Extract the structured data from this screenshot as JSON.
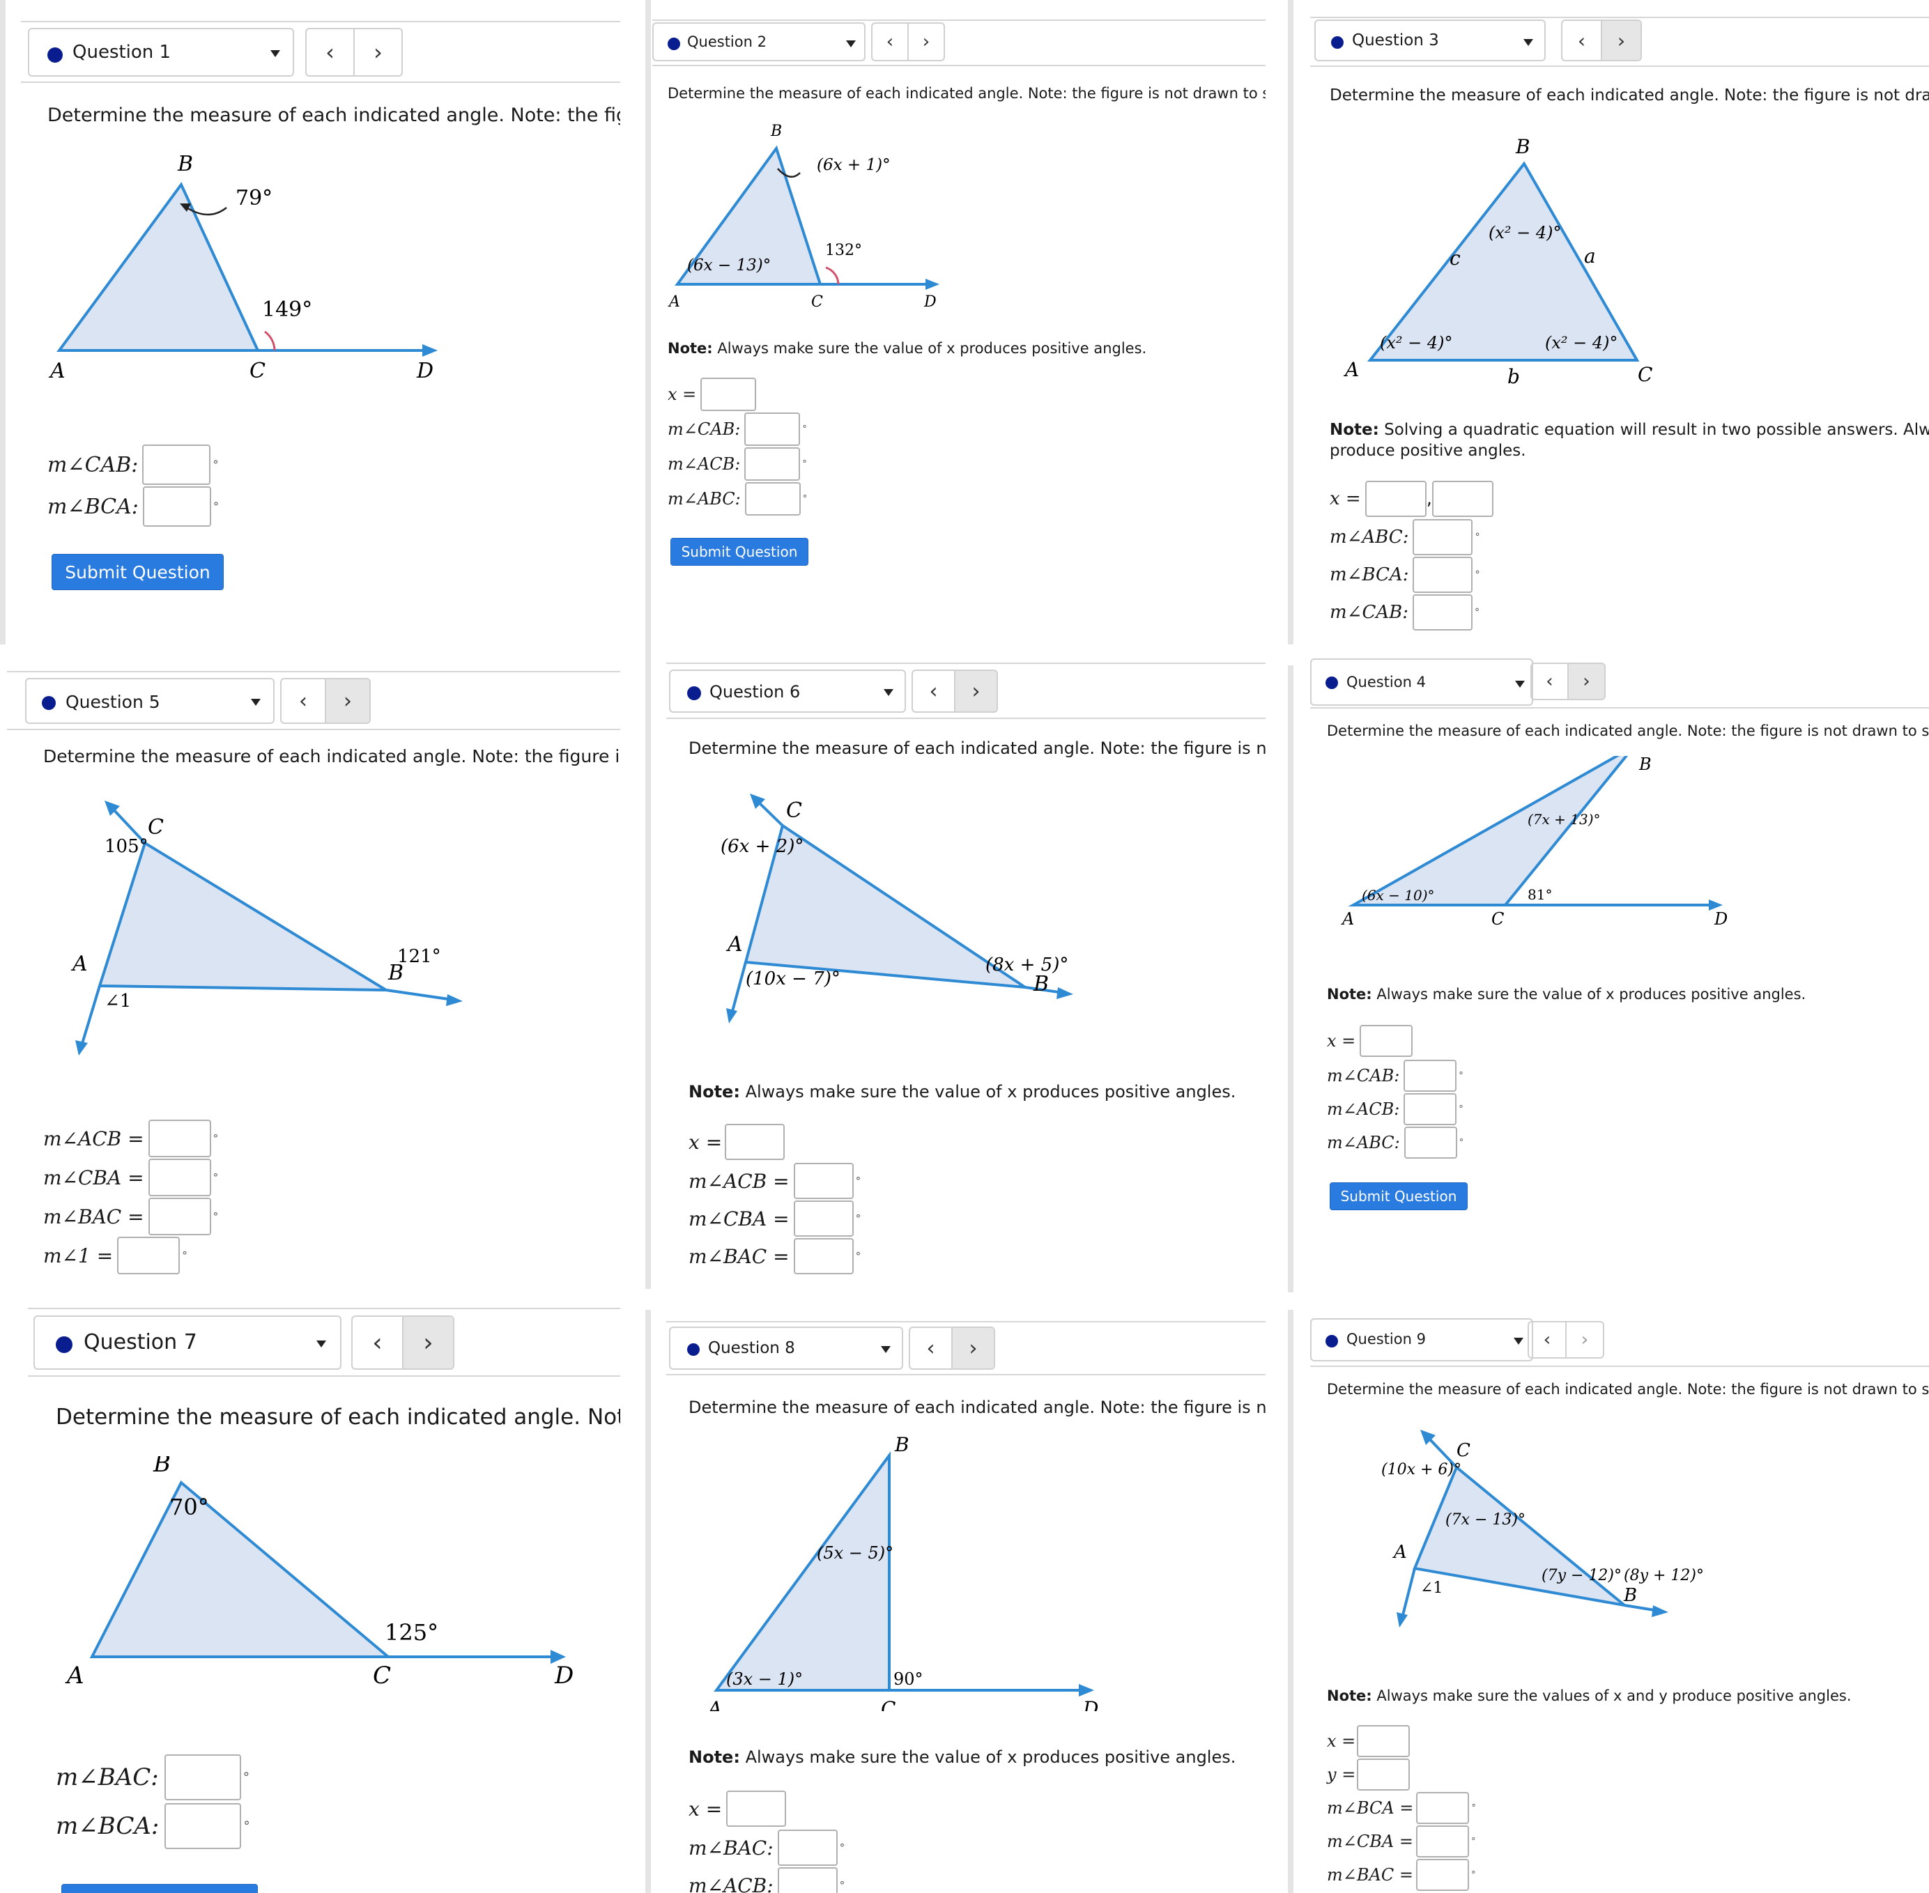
{
  "common": {
    "prompt": "Determine the measure of each indicated angle. Note: the figure is not drawn to scale.",
    "note_label": "Note:",
    "note_text_x": "Always make sure the value of x produces positive angles.",
    "note_text_xy": "Always make sure the values of x and y produce positive angles.",
    "note_text_quadratic": "Solving a quadratic equation will result in two possible answers. Always make sure the value of x produces positive angles.",
    "submit_label": "Submit Question",
    "prev_icon": "‹",
    "next_icon": "›",
    "degree": "°"
  },
  "q1": {
    "title": "Question 1",
    "prompt": "Determine the measure of each indicated angle. Note: the figure is",
    "figure": {
      "B": "B",
      "A": "A",
      "C": "C",
      "D": "D",
      "angle_b": "79°",
      "angle_ext": "149°"
    },
    "fields": [
      "m∠CAB:",
      "m∠BCA:"
    ]
  },
  "q2": {
    "title": "Question 2",
    "figure": {
      "B": "B",
      "A": "A",
      "C": "C",
      "D": "D",
      "angle_b": "(6x + 1)°",
      "angle_a": "(6x − 13)°",
      "angle_ext": "132°"
    },
    "x_label": "x =",
    "fields": [
      "m∠CAB:",
      "m∠ACB:",
      "m∠ABC:"
    ]
  },
  "q3": {
    "title": "Question 3",
    "prompt": "Determine the measure of each indicated angle. Note: the figure is not drawn t",
    "figure": {
      "B": "B",
      "A": "A",
      "C": "C",
      "a": "a",
      "b": "b",
      "c": "c",
      "angle_b": "(x² − 4)°",
      "angle_a": "(x² − 4)°",
      "angle_c": "(x² − 4)°"
    },
    "note_line1": "Solving a quadratic equation will result in two possible answers. Always m",
    "note_line2": "produce positive angles.",
    "x_label": "x =",
    "fields": [
      "m∠ABC:",
      "m∠BCA:",
      "m∠CAB:"
    ]
  },
  "q4": {
    "title": "Question 4",
    "figure": {
      "B": "B",
      "A": "A",
      "C": "C",
      "D": "D",
      "angle_b": "(7x + 13)°",
      "angle_a": "(6x − 10)°",
      "angle_ext": "81°"
    },
    "x_label": "x =",
    "fields": [
      "m∠CAB:",
      "m∠ACB:",
      "m∠ABC:"
    ]
  },
  "q5": {
    "title": "Question 5",
    "prompt": "Determine the measure of each indicated angle. Note: the figure is not dra",
    "figure": {
      "C": "C",
      "A": "A",
      "B": "B",
      "angle_c": "105°",
      "angle_b": "121°",
      "angle_1": "∠1"
    },
    "fields": [
      "m∠ACB =",
      "m∠CBA =",
      "m∠BAC =",
      "m∠1 ="
    ]
  },
  "q6": {
    "title": "Question 6",
    "prompt": "Determine the measure of each indicated angle. Note: the figure is not draw",
    "figure": {
      "C": "C",
      "A": "A",
      "B": "B",
      "angle_c": "(6x + 2)°",
      "angle_a": "(10x − 7)°",
      "angle_b": "(8x + 5)°"
    },
    "x_label": "x =",
    "fields": [
      "m∠ACB =",
      "m∠CBA =",
      "m∠BAC ="
    ]
  },
  "q7": {
    "title": "Question 7",
    "prompt": "Determine the measure of each indicated angle. Note: the",
    "figure": {
      "B": "B",
      "A": "A",
      "C": "C",
      "D": "D",
      "angle_b": "70°",
      "angle_ext": "125°"
    },
    "fields": [
      "m∠BAC:",
      "m∠BCA:"
    ]
  },
  "q8": {
    "title": "Question 8",
    "prompt": "Determine the measure of each indicated angle. Note: the figure is not drawi",
    "figure": {
      "B": "B",
      "A": "A",
      "C": "C",
      "D": "D",
      "angle_b": "(5x − 5)°",
      "angle_a": "(3x − 1)°",
      "angle_ext": "90°"
    },
    "x_label": "x =",
    "fields": [
      "m∠BAC:",
      "m∠ACB:"
    ]
  },
  "q9": {
    "title": "Question 9",
    "figure": {
      "C": "C",
      "A": "A",
      "B": "B",
      "angle_c_ext": "(10x + 6)°",
      "angle_c": "(7x − 13)°",
      "angle_b": "(7y − 12)°",
      "angle_b_ext": "(8y + 12)°",
      "angle_1": "∠1"
    },
    "x_label": "x =",
    "y_label": "y =",
    "fields": [
      "m∠BCA =",
      "m∠CBA =",
      "m∠BAC ="
    ]
  }
}
